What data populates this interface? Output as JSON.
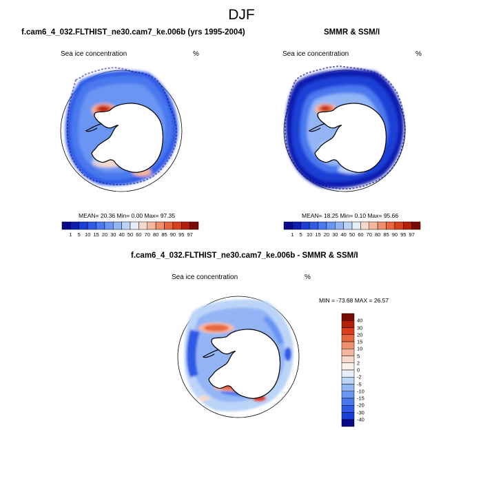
{
  "page": {
    "title": "DJF"
  },
  "panels": [
    {
      "id": "model",
      "title": "f.cam6_4_032.FLTHIST_ne30.cam7_ke.006b (yrs 1995-2004)",
      "variable": "Sea ice concentration",
      "unit": "%",
      "stats": "MEAN= 20.36  Min=  0.00  Max= 97.35"
    },
    {
      "id": "obs",
      "title": "SMMR & SSM/I",
      "variable": "Sea ice concentration",
      "unit": "%",
      "stats": "MEAN= 18.25  Min=  0.10  Max= 95.66"
    },
    {
      "id": "diff",
      "title": "f.cam6_4_032.FLTHIST_ne30.cam7_ke.006b - SMMR & SSM/I",
      "variable": "Sea ice concentration",
      "unit": "%",
      "stats": "MIN = -73.68 MAX =  26.57"
    }
  ],
  "colorbar_levels": {
    "labels": [
      "1",
      "5",
      "10",
      "15",
      "20",
      "30",
      "40",
      "50",
      "60",
      "70",
      "80",
      "85",
      "90",
      "95",
      "97"
    ],
    "colors": [
      "#08088a",
      "#0d1fb0",
      "#1a3fd6",
      "#2e5ae6",
      "#4a78ef",
      "#6b95f3",
      "#93b5f6",
      "#bcd4f8",
      "#e7eef7",
      "#f6d9cc",
      "#f4b79e",
      "#ef8f6b",
      "#e8663f",
      "#d8401c",
      "#b41f0a",
      "#7a0a05"
    ]
  },
  "diff_colorbar_levels": {
    "labels": [
      "40",
      "30",
      "20",
      "15",
      "10",
      "5",
      "2",
      "0",
      "-2",
      "-5",
      "-10",
      "-15",
      "-20",
      "-30",
      "-40"
    ],
    "colors": [
      "#7a0a05",
      "#b41f0a",
      "#d8401c",
      "#e8663f",
      "#ef8f6b",
      "#f4b79e",
      "#f6d9cc",
      "#fbf0ec",
      "#e7eef7",
      "#bcd4f8",
      "#93b5f6",
      "#6b95f3",
      "#4a78ef",
      "#2e5ae6",
      "#1a3fd6",
      "#08088a"
    ]
  },
  "map_colors": {
    "land": "#ffffff",
    "ocean": "#ffffff",
    "coast": "#000000"
  }
}
